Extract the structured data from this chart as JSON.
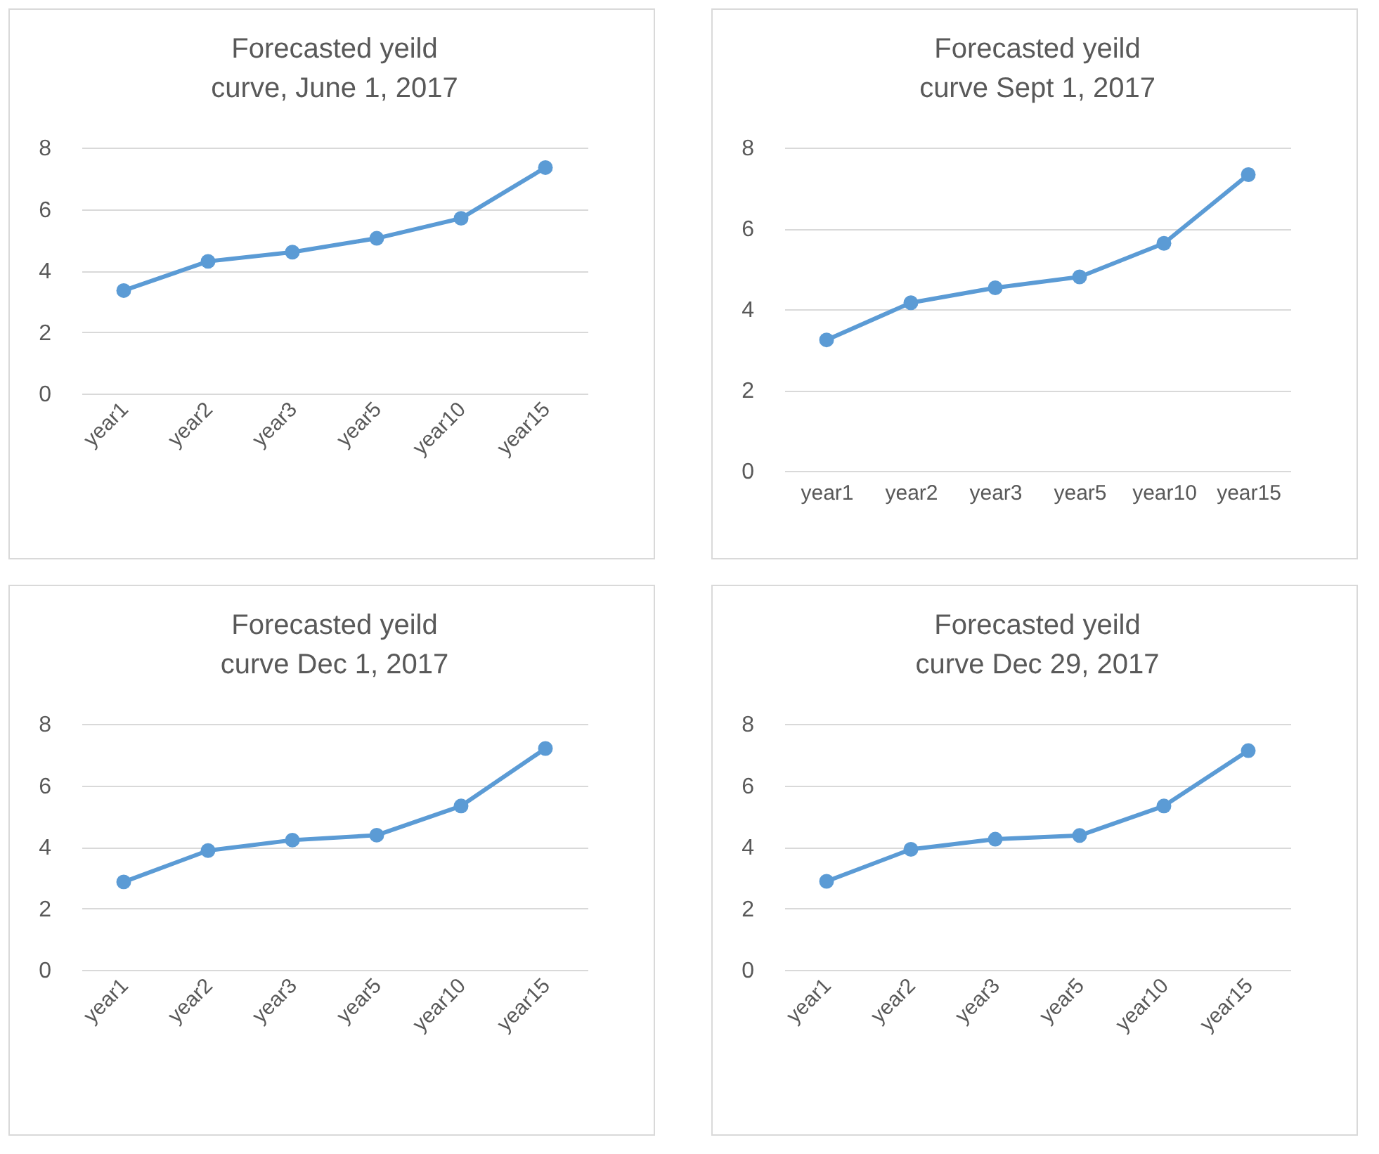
{
  "chart_data": [
    {
      "type": "line",
      "title": "Forecasted yeild curve, June 1, 2017",
      "categories": [
        "year1",
        "year2",
        "year3",
        "year5",
        "year10",
        "year15"
      ],
      "series": [
        {
          "color": "#5b9bd5",
          "values": [
            3.35,
            4.3,
            4.6,
            5.05,
            5.7,
            7.35
          ]
        }
      ],
      "ylim": [
        0,
        8
      ],
      "yticks": [
        0,
        2,
        4,
        6,
        8
      ],
      "grid": "y",
      "marker": "circle",
      "legend": false
    },
    {
      "type": "line",
      "title": "Forecasted yeild curve Sept 1, 2017",
      "categories": [
        "year1",
        "year2",
        "year3",
        "year5",
        "year10",
        "year15"
      ],
      "series": [
        {
          "color": "#5b9bd5",
          "values": [
            3.24,
            4.16,
            4.53,
            4.8,
            5.63,
            7.33
          ]
        }
      ],
      "ylim": [
        0,
        8
      ],
      "yticks": [
        0,
        2,
        4,
        6,
        8
      ],
      "grid": "y",
      "marker": "circle",
      "legend": false
    },
    {
      "type": "line",
      "title": "Forecasted yeild curve Dec 1, 2017",
      "categories": [
        "year1",
        "year2",
        "year3",
        "year5",
        "year10",
        "year15"
      ],
      "series": [
        {
          "color": "#5b9bd5",
          "values": [
            2.86,
            3.88,
            4.22,
            4.38,
            5.33,
            7.2
          ]
        }
      ],
      "ylim": [
        0,
        8
      ],
      "yticks": [
        0,
        2,
        4,
        6,
        8
      ],
      "grid": "y",
      "marker": "circle",
      "legend": false
    },
    {
      "type": "line",
      "title": "Forecasted yeild curve Dec 29, 2017",
      "categories": [
        "year1",
        "year2",
        "year3",
        "year5",
        "year10",
        "year15"
      ],
      "series": [
        {
          "color": "#5b9bd5",
          "values": [
            2.88,
            3.92,
            4.25,
            4.37,
            5.33,
            7.13
          ]
        }
      ],
      "ylim": [
        0,
        8
      ],
      "yticks": [
        0,
        2,
        4,
        6,
        8
      ],
      "grid": "y",
      "marker": "circle",
      "legend": false
    }
  ]
}
